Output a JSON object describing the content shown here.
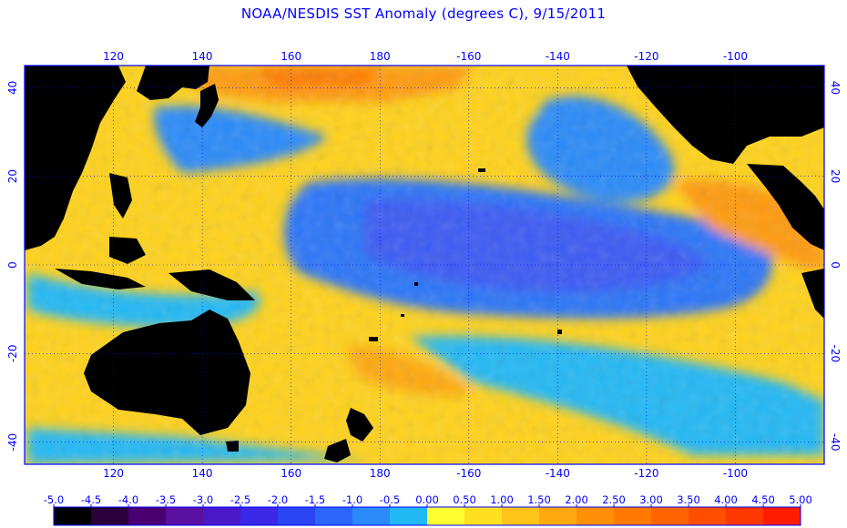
{
  "title": "NOAA/NESDIS SST Anomaly (degrees C), 9/15/2011",
  "colors": {
    "axis": "#0000ff",
    "land": "#000000",
    "background": "#ffffff"
  },
  "map": {
    "lon_range": [
      100,
      280
    ],
    "lat_range": [
      -45,
      45
    ],
    "lon_ticks": [
      {
        "value": 120,
        "label": "120"
      },
      {
        "value": 140,
        "label": "140"
      },
      {
        "value": 160,
        "label": "160"
      },
      {
        "value": 180,
        "label": "180"
      },
      {
        "value": 200,
        "label": "-160"
      },
      {
        "value": 220,
        "label": "-140"
      },
      {
        "value": 240,
        "label": "-120"
      },
      {
        "value": 260,
        "label": "-100"
      }
    ],
    "lat_ticks": [
      {
        "value": 40,
        "label": "40"
      },
      {
        "value": 20,
        "label": "20"
      },
      {
        "value": 0,
        "label": "0"
      },
      {
        "value": -20,
        "label": "-20"
      },
      {
        "value": -40,
        "label": "-40"
      }
    ],
    "grid": true
  },
  "colorbar": {
    "labels": [
      "-5.0",
      "-4.5",
      "-4.0",
      "-3.5",
      "-3.0",
      "-2.5",
      "-2.0",
      "-1.5",
      "-1.0",
      "-0.5",
      "0.00",
      "0.50",
      "1.00",
      "1.50",
      "2.00",
      "2.50",
      "3.00",
      "3.50",
      "4.00",
      "4.50",
      "5.00"
    ],
    "colors": [
      "#000000",
      "#2a003a",
      "#4a0070",
      "#5a10a0",
      "#4b18c8",
      "#3a28e6",
      "#2a46f4",
      "#2a66fa",
      "#2a8af8",
      "#22b8f4",
      "#ffff30",
      "#ffe020",
      "#ffc418",
      "#ffa810",
      "#ff9008",
      "#ff7a00",
      "#ff6400",
      "#ff4e00",
      "#ff3800",
      "#ff1c00"
    ]
  }
}
